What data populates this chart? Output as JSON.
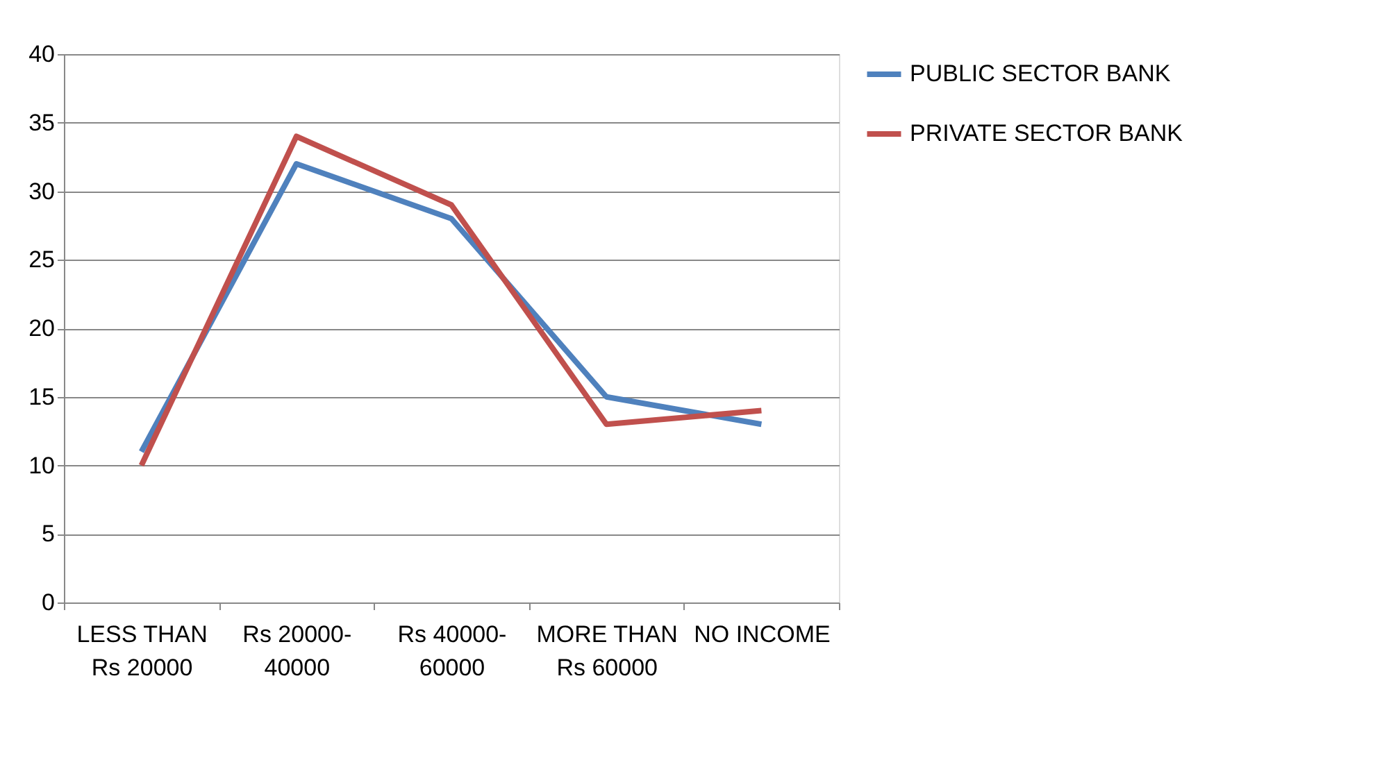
{
  "chart_data": {
    "type": "line",
    "categories": [
      "LESS THAN Rs 20000",
      "Rs 20000-40000",
      "Rs 40000-60000",
      "MORE THAN Rs 60000",
      "NO INCOME"
    ],
    "series": [
      {
        "name": "PUBLIC SECTOR BANK",
        "color": "#4f81bd",
        "values": [
          11,
          32,
          28,
          15,
          13
        ]
      },
      {
        "name": "PRIVATE SECTOR BANK",
        "color": "#c0504d",
        "values": [
          10,
          34,
          29,
          13,
          14
        ]
      }
    ],
    "ylim": [
      0,
      40
    ],
    "yticks": [
      0,
      5,
      10,
      15,
      20,
      25,
      30,
      35,
      40
    ],
    "grid": "y",
    "legend": "right",
    "marker": "none",
    "line_style": "solid"
  }
}
